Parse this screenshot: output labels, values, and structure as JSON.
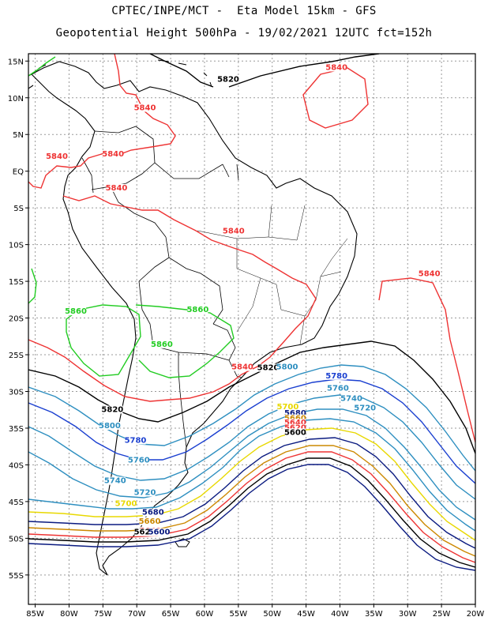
{
  "title": {
    "line1": "CPTEC/INPE/MCT -  Eta Model 15km - GFS",
    "line2": "Geopotential Height 500hPa - 19/02/2021 12UTC fct=152h"
  },
  "map": {
    "lon_range": [
      -86,
      -20
    ],
    "lat_range": [
      -59,
      16
    ],
    "x_ticks": [
      "85W",
      "80W",
      "75W",
      "70W",
      "65W",
      "60W",
      "55W",
      "50W",
      "45W",
      "40W",
      "35W",
      "30W",
      "25W",
      "20W"
    ],
    "y_ticks": [
      "15N",
      "10N",
      "5N",
      "EQ",
      "5S",
      "10S",
      "15S",
      "20S",
      "25S",
      "30S",
      "35S",
      "40S",
      "45S",
      "50S",
      "55S"
    ]
  },
  "contour_labels": [
    {
      "text": "5820",
      "color": "#000000",
      "lon": -56.5,
      "lat": 12.2
    },
    {
      "text": "5840",
      "color": "#ee3333",
      "lon": -40.5,
      "lat": 13.8
    },
    {
      "text": "5840",
      "color": "#ee3333",
      "lon": -68.8,
      "lat": 8.3
    },
    {
      "text": "5840",
      "color": "#ee3333",
      "lon": -81.8,
      "lat": 1.7
    },
    {
      "text": "5840",
      "color": "#ee3333",
      "lon": -73.5,
      "lat": 2.0
    },
    {
      "text": "5840",
      "color": "#ee3333",
      "lon": -73.0,
      "lat": -2.6
    },
    {
      "text": "5840",
      "color": "#ee3333",
      "lon": -55.7,
      "lat": -8.5
    },
    {
      "text": "5840",
      "color": "#ee3333",
      "lon": -26.8,
      "lat": -14.3
    },
    {
      "text": "5860",
      "color": "#22cc22",
      "lon": -79.0,
      "lat": -19.4
    },
    {
      "text": "5860",
      "color": "#22cc22",
      "lon": -61.0,
      "lat": -19.2
    },
    {
      "text": "5860",
      "color": "#22cc22",
      "lon": -66.3,
      "lat": -23.9
    },
    {
      "text": "5840",
      "color": "#ee3333",
      "lon": -54.4,
      "lat": -27.0
    },
    {
      "text": "5820",
      "color": "#000000",
      "lon": -50.6,
      "lat": -27.1
    },
    {
      "text": "5800",
      "color": "#2e8fc0",
      "lon": -47.8,
      "lat": -27.0
    },
    {
      "text": "5780",
      "color": "#1a3fd0",
      "lon": -40.5,
      "lat": -28.2
    },
    {
      "text": "5760",
      "color": "#2e8fc0",
      "lon": -40.3,
      "lat": -29.9
    },
    {
      "text": "5740",
      "color": "#2e8fc0",
      "lon": -38.3,
      "lat": -31.3
    },
    {
      "text": "5720",
      "color": "#2e8fc0",
      "lon": -36.3,
      "lat": -32.6
    },
    {
      "text": "5700",
      "color": "#e8d800",
      "lon": -47.7,
      "lat": -32.4
    },
    {
      "text": "5820",
      "color": "#000000",
      "lon": -73.6,
      "lat": -32.8
    },
    {
      "text": "5800",
      "color": "#2e8fc0",
      "lon": -74.0,
      "lat": -35.0
    },
    {
      "text": "5780",
      "color": "#1a3fd0",
      "lon": -70.2,
      "lat": -37.0
    },
    {
      "text": "5760",
      "color": "#2e8fc0",
      "lon": -69.7,
      "lat": -39.7
    },
    {
      "text": "5740",
      "color": "#2e8fc0",
      "lon": -73.2,
      "lat": -42.5
    },
    {
      "text": "5720",
      "color": "#2e8fc0",
      "lon": -68.8,
      "lat": -44.1
    },
    {
      "text": "5700",
      "color": "#e8d800",
      "lon": -71.6,
      "lat": -45.6
    },
    {
      "text": "5680",
      "color": "#0a1a80",
      "lon": -67.6,
      "lat": -46.8
    },
    {
      "text": "5660",
      "color": "#cc8800",
      "lon": -68.1,
      "lat": -48.0
    },
    {
      "text": "5640",
      "color": "#ee3333",
      "lon": -68.0,
      "lat": -49.3
    },
    {
      "text": "5620",
      "color": "#000000",
      "lon": -68.8,
      "lat": -49.5
    },
    {
      "text": "5600",
      "color": "#0a1a80",
      "lon": -66.7,
      "lat": -49.5
    },
    {
      "text": "5680",
      "color": "#0a1a80",
      "lon": -46.6,
      "lat": -33.3
    },
    {
      "text": "5660",
      "color": "#cc8800",
      "lon": -46.6,
      "lat": -34.0
    },
    {
      "text": "5640",
      "color": "#ee3333",
      "lon": -46.6,
      "lat": -34.6
    },
    {
      "text": "5620",
      "color": "#ee3333",
      "lon": -46.6,
      "lat": -35.3
    },
    {
      "text": "5600",
      "color": "#000000",
      "lon": -46.6,
      "lat": -35.9
    }
  ]
}
